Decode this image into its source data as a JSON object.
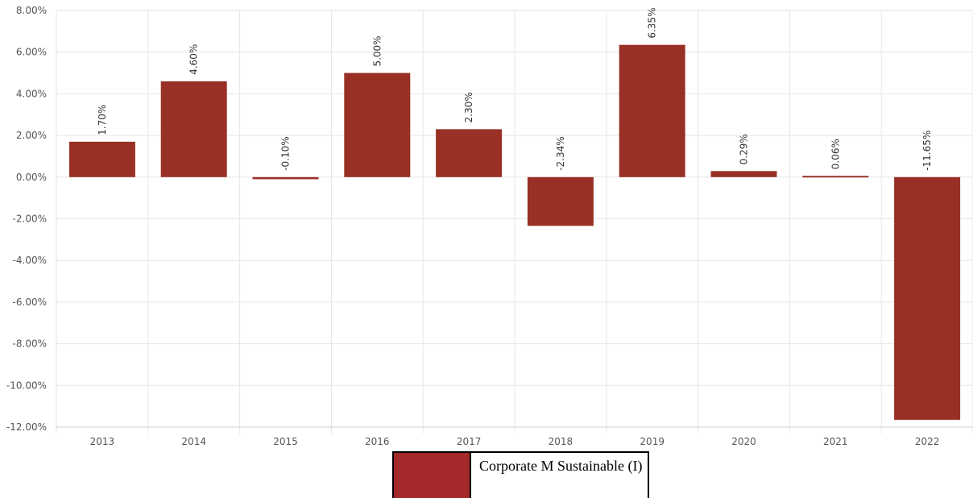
{
  "chart_data": {
    "type": "bar",
    "categories": [
      "2013",
      "2014",
      "2015",
      "2016",
      "2017",
      "2018",
      "2019",
      "2020",
      "2021",
      "2022"
    ],
    "series": [
      {
        "name": "Corporate M Sustainable (I)",
        "values": [
          1.7,
          4.6,
          -0.1,
          5.0,
          2.3,
          -2.34,
          6.35,
          0.29,
          0.06,
          -11.65
        ],
        "labels": [
          "1.70%",
          "4.60%",
          "-0.10%",
          "5.00%",
          "2.30%",
          "-2.34%",
          "6.35%",
          "0.29%",
          "0.06%",
          "-11.65%"
        ]
      }
    ],
    "ylim": [
      -12,
      8
    ],
    "yticks": [
      8,
      6,
      4,
      2,
      0,
      -2,
      -4,
      -6,
      -8,
      -10,
      -12
    ],
    "ytick_labels": [
      "8.00%",
      "6.00%",
      "4.00%",
      "2.00%",
      "0.00%",
      "-2.00%",
      "-4.00%",
      "-6.00%",
      "-8.00%",
      "-10.00%",
      "-12.00%"
    ],
    "grid": true,
    "legend_position": "bottom-center",
    "colors": {
      "bar": "#993026",
      "legend_swatch": "#a3292b",
      "grid": "#e6e6e6"
    }
  },
  "legend": {
    "label": "Corporate M Sustainable (I)"
  }
}
